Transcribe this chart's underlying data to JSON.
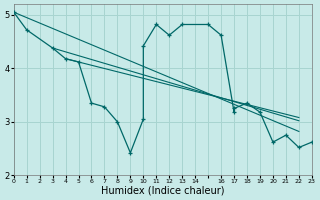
{
  "xlabel": "Humidex (Indice chaleur)",
  "bg_color": "#c8eae8",
  "grid_color": "#a8d4d0",
  "line_color": "#006868",
  "xlim": [
    0,
    23
  ],
  "ylim": [
    2,
    5.2
  ],
  "yticks": [
    2,
    3,
    4,
    5
  ],
  "main_line": [
    [
      0,
      5.05
    ],
    [
      1,
      4.72
    ],
    [
      3,
      4.38
    ],
    [
      4,
      4.18
    ],
    [
      5,
      4.12
    ],
    [
      6,
      3.35
    ],
    [
      7,
      3.28
    ],
    [
      8,
      3.0
    ],
    [
      9,
      2.42
    ],
    [
      10,
      3.05
    ],
    [
      10,
      4.42
    ],
    [
      11,
      4.82
    ],
    [
      12,
      4.62
    ],
    [
      13,
      4.82
    ],
    [
      15,
      4.82
    ],
    [
      16,
      4.62
    ],
    [
      17,
      3.18
    ],
    [
      17,
      3.25
    ],
    [
      18,
      3.35
    ],
    [
      19,
      3.18
    ],
    [
      20,
      2.62
    ],
    [
      21,
      2.75
    ],
    [
      22,
      2.52
    ],
    [
      23,
      2.62
    ]
  ],
  "diag_lines": [
    [
      [
        0,
        5.05
      ],
      [
        22,
        2.82
      ]
    ],
    [
      [
        3,
        4.38
      ],
      [
        22,
        3.02
      ]
    ],
    [
      [
        4,
        4.18
      ],
      [
        22,
        3.08
      ]
    ]
  ]
}
